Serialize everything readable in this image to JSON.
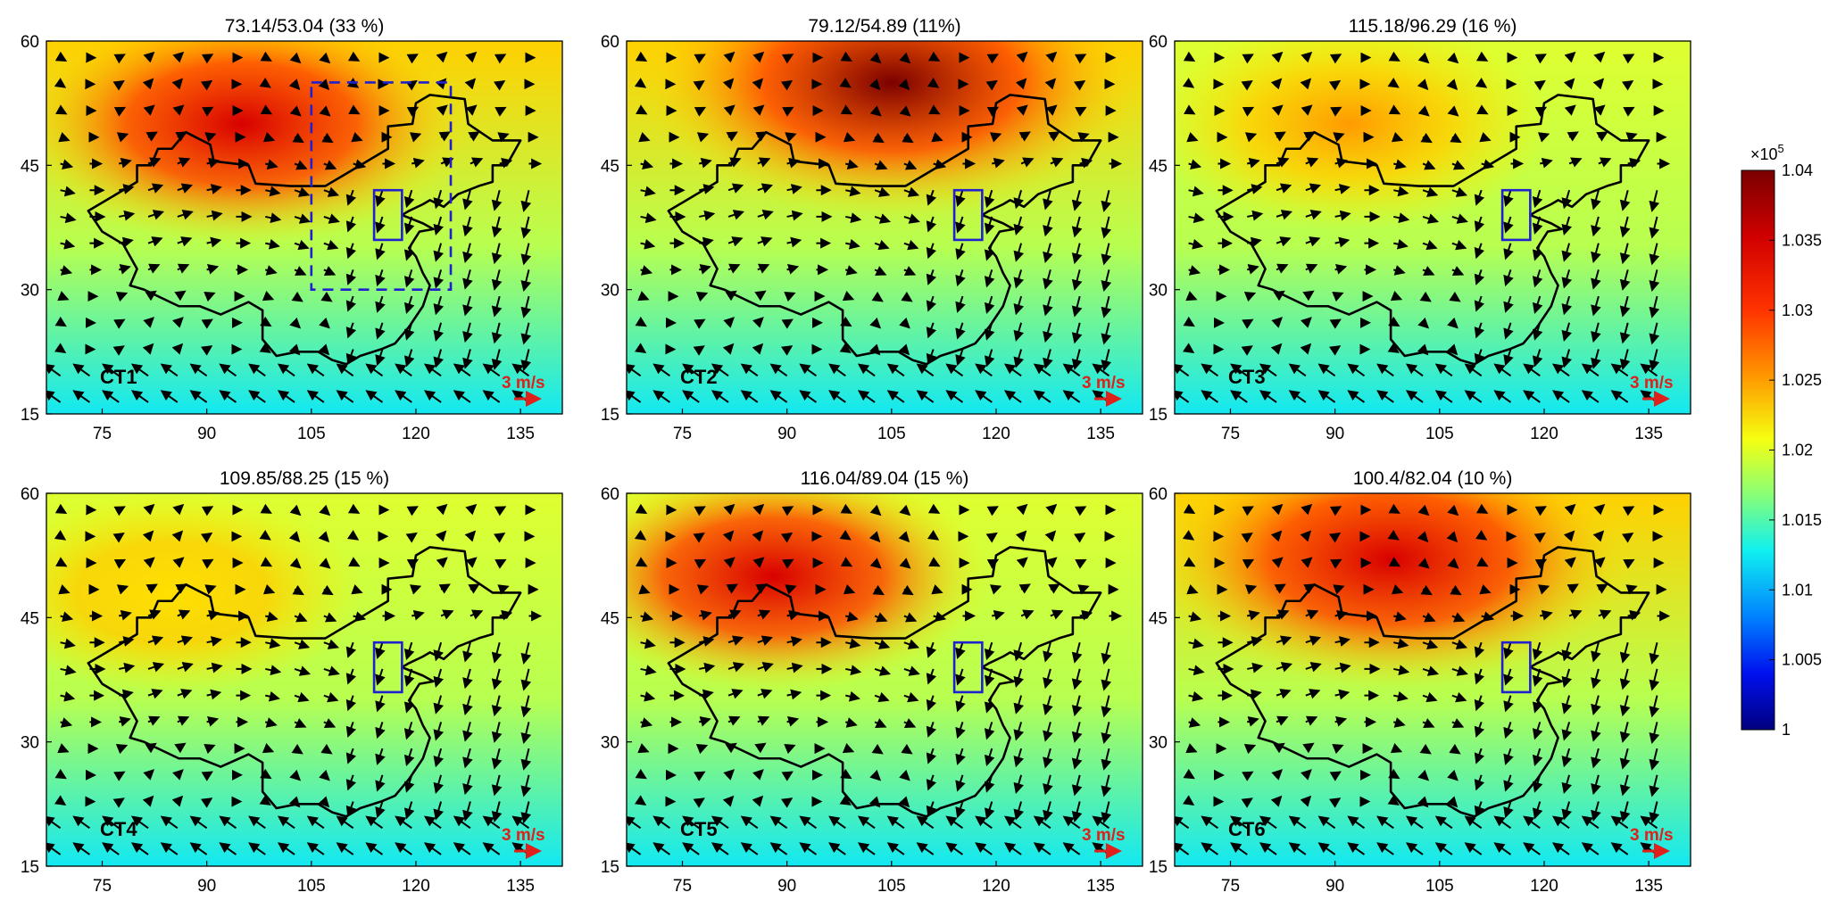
{
  "colorbar": {
    "multiplier": "×10",
    "multiplier_exp": "5",
    "ticks": [
      "1.04",
      "1.035",
      "1.03",
      "1.025",
      "1.02",
      "1.015",
      "1.01",
      "1.005",
      "1"
    ],
    "colors": [
      "#7b0000",
      "#d10000",
      "#ff2a00",
      "#ff8a00",
      "#ffd200",
      "#f2ff10",
      "#aaff55",
      "#55ffaa",
      "#10f0f0",
      "#00a8ff",
      "#0050ff",
      "#0000d0",
      "#00007f"
    ]
  },
  "axes": {
    "x_ticks": [
      "75",
      "90",
      "105",
      "120",
      "135"
    ],
    "y_ticks": [
      "60",
      "45",
      "30",
      "15"
    ]
  },
  "panels": [
    {
      "title": "73.14/53.04 (33 %)",
      "label": "CT1",
      "scale": "3 m/s",
      "intensity": 0.72,
      "center": [
        95,
        50
      ]
    },
    {
      "title": "79.12/54.89 (11%)",
      "label": "CT2",
      "scale": "3 m/s",
      "intensity": 0.98,
      "center": [
        105,
        55
      ]
    },
    {
      "title": "115.18/96.29 (16 %)",
      "label": "CT3",
      "scale": "3 m/s",
      "intensity": 0.45,
      "center": [
        92,
        50
      ]
    },
    {
      "title": "109.85/88.25 (15 %)",
      "label": "CT4",
      "scale": "3 m/s",
      "intensity": 0.35,
      "center": [
        85,
        48
      ]
    },
    {
      "title": "116.04/89.04 (15 %)",
      "label": "CT5",
      "scale": "3 m/s",
      "intensity": 0.62,
      "center": [
        88,
        50
      ]
    },
    {
      "title": "100.4/82.04 (10 %)",
      "label": "CT6",
      "scale": "3 m/s",
      "intensity": 0.85,
      "center": [
        98,
        52
      ]
    }
  ]
}
